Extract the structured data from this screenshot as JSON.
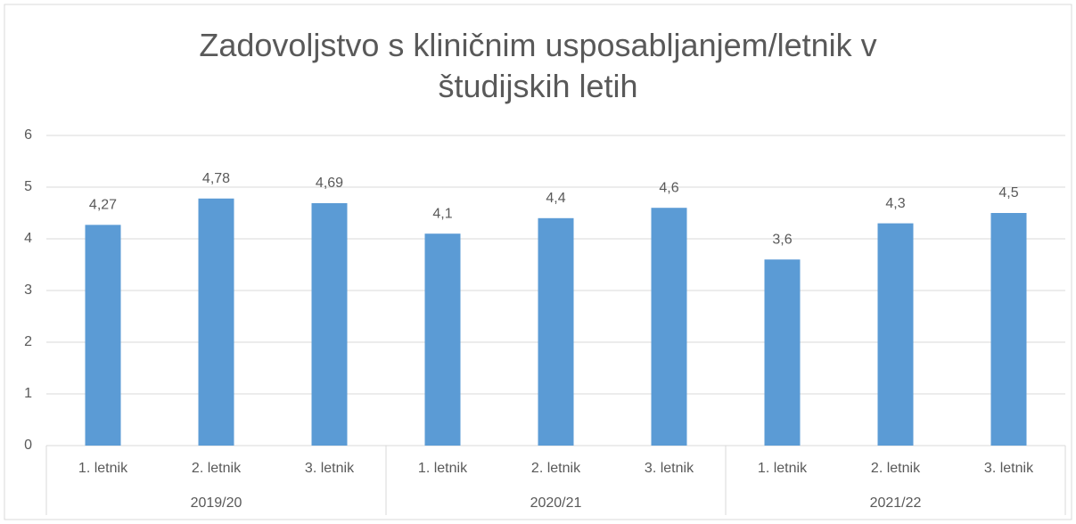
{
  "chart_data": {
    "type": "bar",
    "title": "Zadovoljstvo s kliničnim usposabljanjem/letnik v študijskih letih",
    "categories": [
      "1. letnik",
      "2. letnik",
      "3. letnik",
      "1. letnik",
      "2. letnik",
      "3. letnik",
      "1. letnik",
      "2. letnik",
      "3. letnik"
    ],
    "groups": [
      "2019/20",
      "2020/21",
      "2021/22"
    ],
    "values": [
      4.27,
      4.78,
      4.69,
      4.1,
      4.4,
      4.6,
      3.6,
      4.3,
      4.5
    ],
    "value_labels": [
      "4,27",
      "4,78",
      "4,69",
      "4,1",
      "4,4",
      "4,6",
      "3,6",
      "4,3",
      "4,5"
    ],
    "color": "#5b9bd5",
    "ylim": [
      0,
      6
    ],
    "yticks": [
      0,
      1,
      2,
      3,
      4,
      5,
      6
    ],
    "grid": true
  }
}
